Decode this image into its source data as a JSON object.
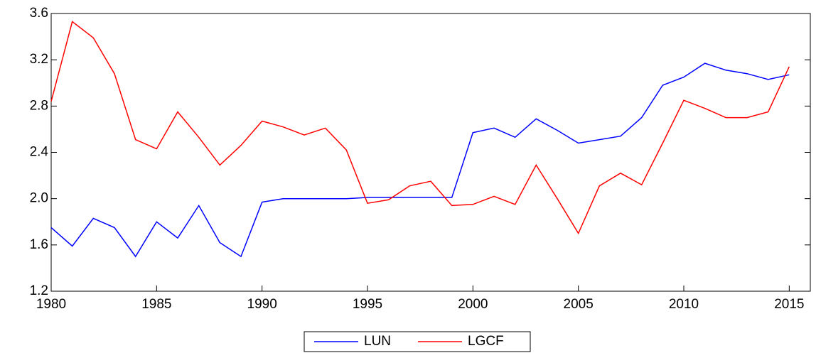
{
  "chart_data": {
    "type": "line",
    "x": [
      1980,
      1981,
      1982,
      1983,
      1984,
      1985,
      1986,
      1987,
      1988,
      1989,
      1990,
      1991,
      1992,
      1993,
      1994,
      1995,
      1996,
      1997,
      1998,
      1999,
      2000,
      2001,
      2002,
      2003,
      2004,
      2005,
      2006,
      2007,
      2008,
      2009,
      2010,
      2011,
      2012,
      2013,
      2014,
      2015
    ],
    "series": [
      {
        "name": "LUN",
        "color": "#0000ff",
        "values": [
          1.75,
          1.59,
          1.83,
          1.75,
          1.5,
          1.8,
          1.66,
          1.94,
          1.62,
          1.5,
          1.97,
          2.0,
          2.0,
          2.0,
          2.0,
          2.01,
          2.01,
          2.01,
          2.01,
          2.01,
          2.57,
          2.61,
          2.53,
          2.69,
          2.59,
          2.48,
          2.51,
          2.54,
          2.7,
          2.98,
          3.05,
          3.17,
          3.11,
          3.08,
          3.03,
          3.07
        ]
      },
      {
        "name": "LGCF",
        "color": "#ff0000",
        "values": [
          2.84,
          3.53,
          3.39,
          3.08,
          2.51,
          2.43,
          2.75,
          2.53,
          2.29,
          2.46,
          2.67,
          2.62,
          2.55,
          2.61,
          2.42,
          1.96,
          1.99,
          2.11,
          2.15,
          1.94,
          1.95,
          2.02,
          1.95,
          2.29,
          2.0,
          1.7,
          2.11,
          2.22,
          2.12,
          2.48,
          2.85,
          2.78,
          2.7,
          2.7,
          2.75,
          3.14
        ]
      }
    ],
    "xlim": [
      1980,
      2016
    ],
    "xticks": [
      1980,
      1985,
      1990,
      1995,
      2000,
      2005,
      2010,
      2015
    ],
    "ylim": [
      1.2,
      3.6
    ],
    "yticks": [
      1.2,
      1.6,
      {
        "value": 2,
        "label": "2.0"
      },
      2.4,
      2.8,
      3.2,
      3.6
    ],
    "legend": "bottom"
  }
}
